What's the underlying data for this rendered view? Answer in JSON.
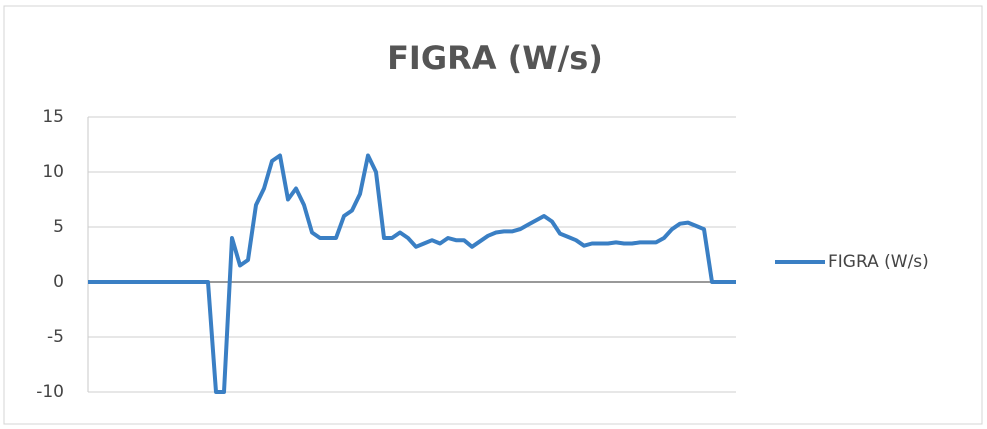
{
  "chart_data": {
    "type": "line",
    "title": "FIGRA (W/s)",
    "categories": [
      null,
      null,
      null,
      null,
      null,
      null,
      null,
      null,
      null,
      null,
      null,
      null,
      null,
      null,
      null,
      null,
      null,
      null,
      null,
      null,
      null,
      null,
      null,
      null,
      null,
      null,
      null,
      null,
      null,
      null,
      null,
      null,
      null,
      null,
      null,
      null,
      null,
      null,
      null,
      null,
      null,
      null,
      null,
      null,
      null,
      null,
      null,
      null,
      null,
      null,
      null,
      null,
      null,
      null,
      null,
      null,
      null,
      null,
      null,
      null,
      null,
      null,
      null,
      null,
      null,
      null,
      null,
      null,
      null,
      null,
      null,
      null,
      null,
      null,
      null,
      null,
      null,
      null,
      null,
      null,
      null,
      null
    ],
    "series": [
      {
        "name": "FIGRA (W/s)",
        "color": "#3a7fc4",
        "values": [
          0,
          0,
          0,
          0,
          0,
          0,
          0,
          0,
          0,
          0,
          0,
          0,
          0,
          0,
          0,
          0,
          -10,
          -10,
          4,
          1.5,
          2,
          7,
          8.5,
          11,
          11.5,
          7.5,
          8.5,
          7,
          4.5,
          4,
          4,
          4,
          6,
          6.5,
          8,
          11.5,
          10,
          4,
          4,
          4.5,
          4,
          3.2,
          3.5,
          3.8,
          3.5,
          4,
          3.8,
          3.8,
          3.2,
          3.7,
          4.2,
          4.5,
          4.6,
          4.6,
          4.8,
          5.2,
          5.6,
          6,
          5.5,
          4.4,
          4.1,
          3.8,
          3.3,
          3.5,
          3.5,
          3.5,
          3.6,
          3.5,
          3.5,
          3.6,
          3.6,
          3.6,
          4,
          4.8,
          5.3,
          5.4,
          5.1,
          4.8,
          0,
          0,
          0,
          0
        ]
      }
    ],
    "ylim": [
      -10,
      15
    ],
    "yticks": [
      -10,
      -5,
      0,
      5,
      10,
      15
    ],
    "grid": true,
    "legend": "right"
  }
}
